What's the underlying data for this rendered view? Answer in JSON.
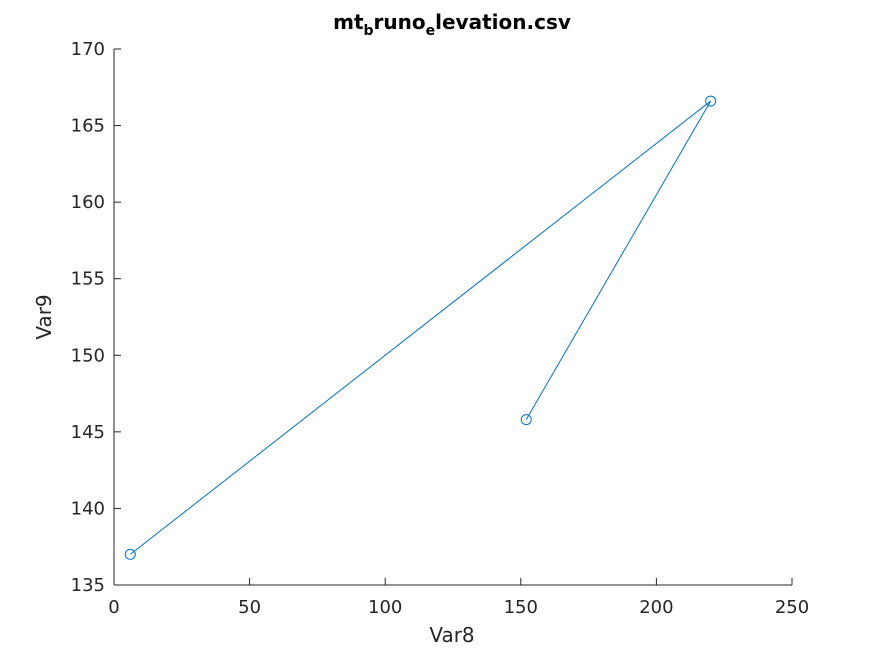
{
  "chart_data": {
    "type": "line",
    "title_parts": [
      {
        "text": "mt",
        "sub": false
      },
      {
        "text": "b",
        "sub": true
      },
      {
        "text": "runo",
        "sub": false
      },
      {
        "text": "e",
        "sub": true
      },
      {
        "text": "levation.csv",
        "sub": false
      }
    ],
    "xlabel": "Var8",
    "ylabel": "Var9",
    "xlim": [
      0,
      250
    ],
    "ylim": [
      135,
      170
    ],
    "xticks": [
      0,
      50,
      100,
      150,
      200,
      250
    ],
    "yticks": [
      135,
      140,
      145,
      150,
      155,
      160,
      165,
      170
    ],
    "grid": false,
    "series": [
      {
        "x": [
          6,
          220,
          152
        ],
        "y": [
          137,
          166.6,
          145.8
        ],
        "color": "#0072BD",
        "marker": "circle"
      }
    ]
  }
}
